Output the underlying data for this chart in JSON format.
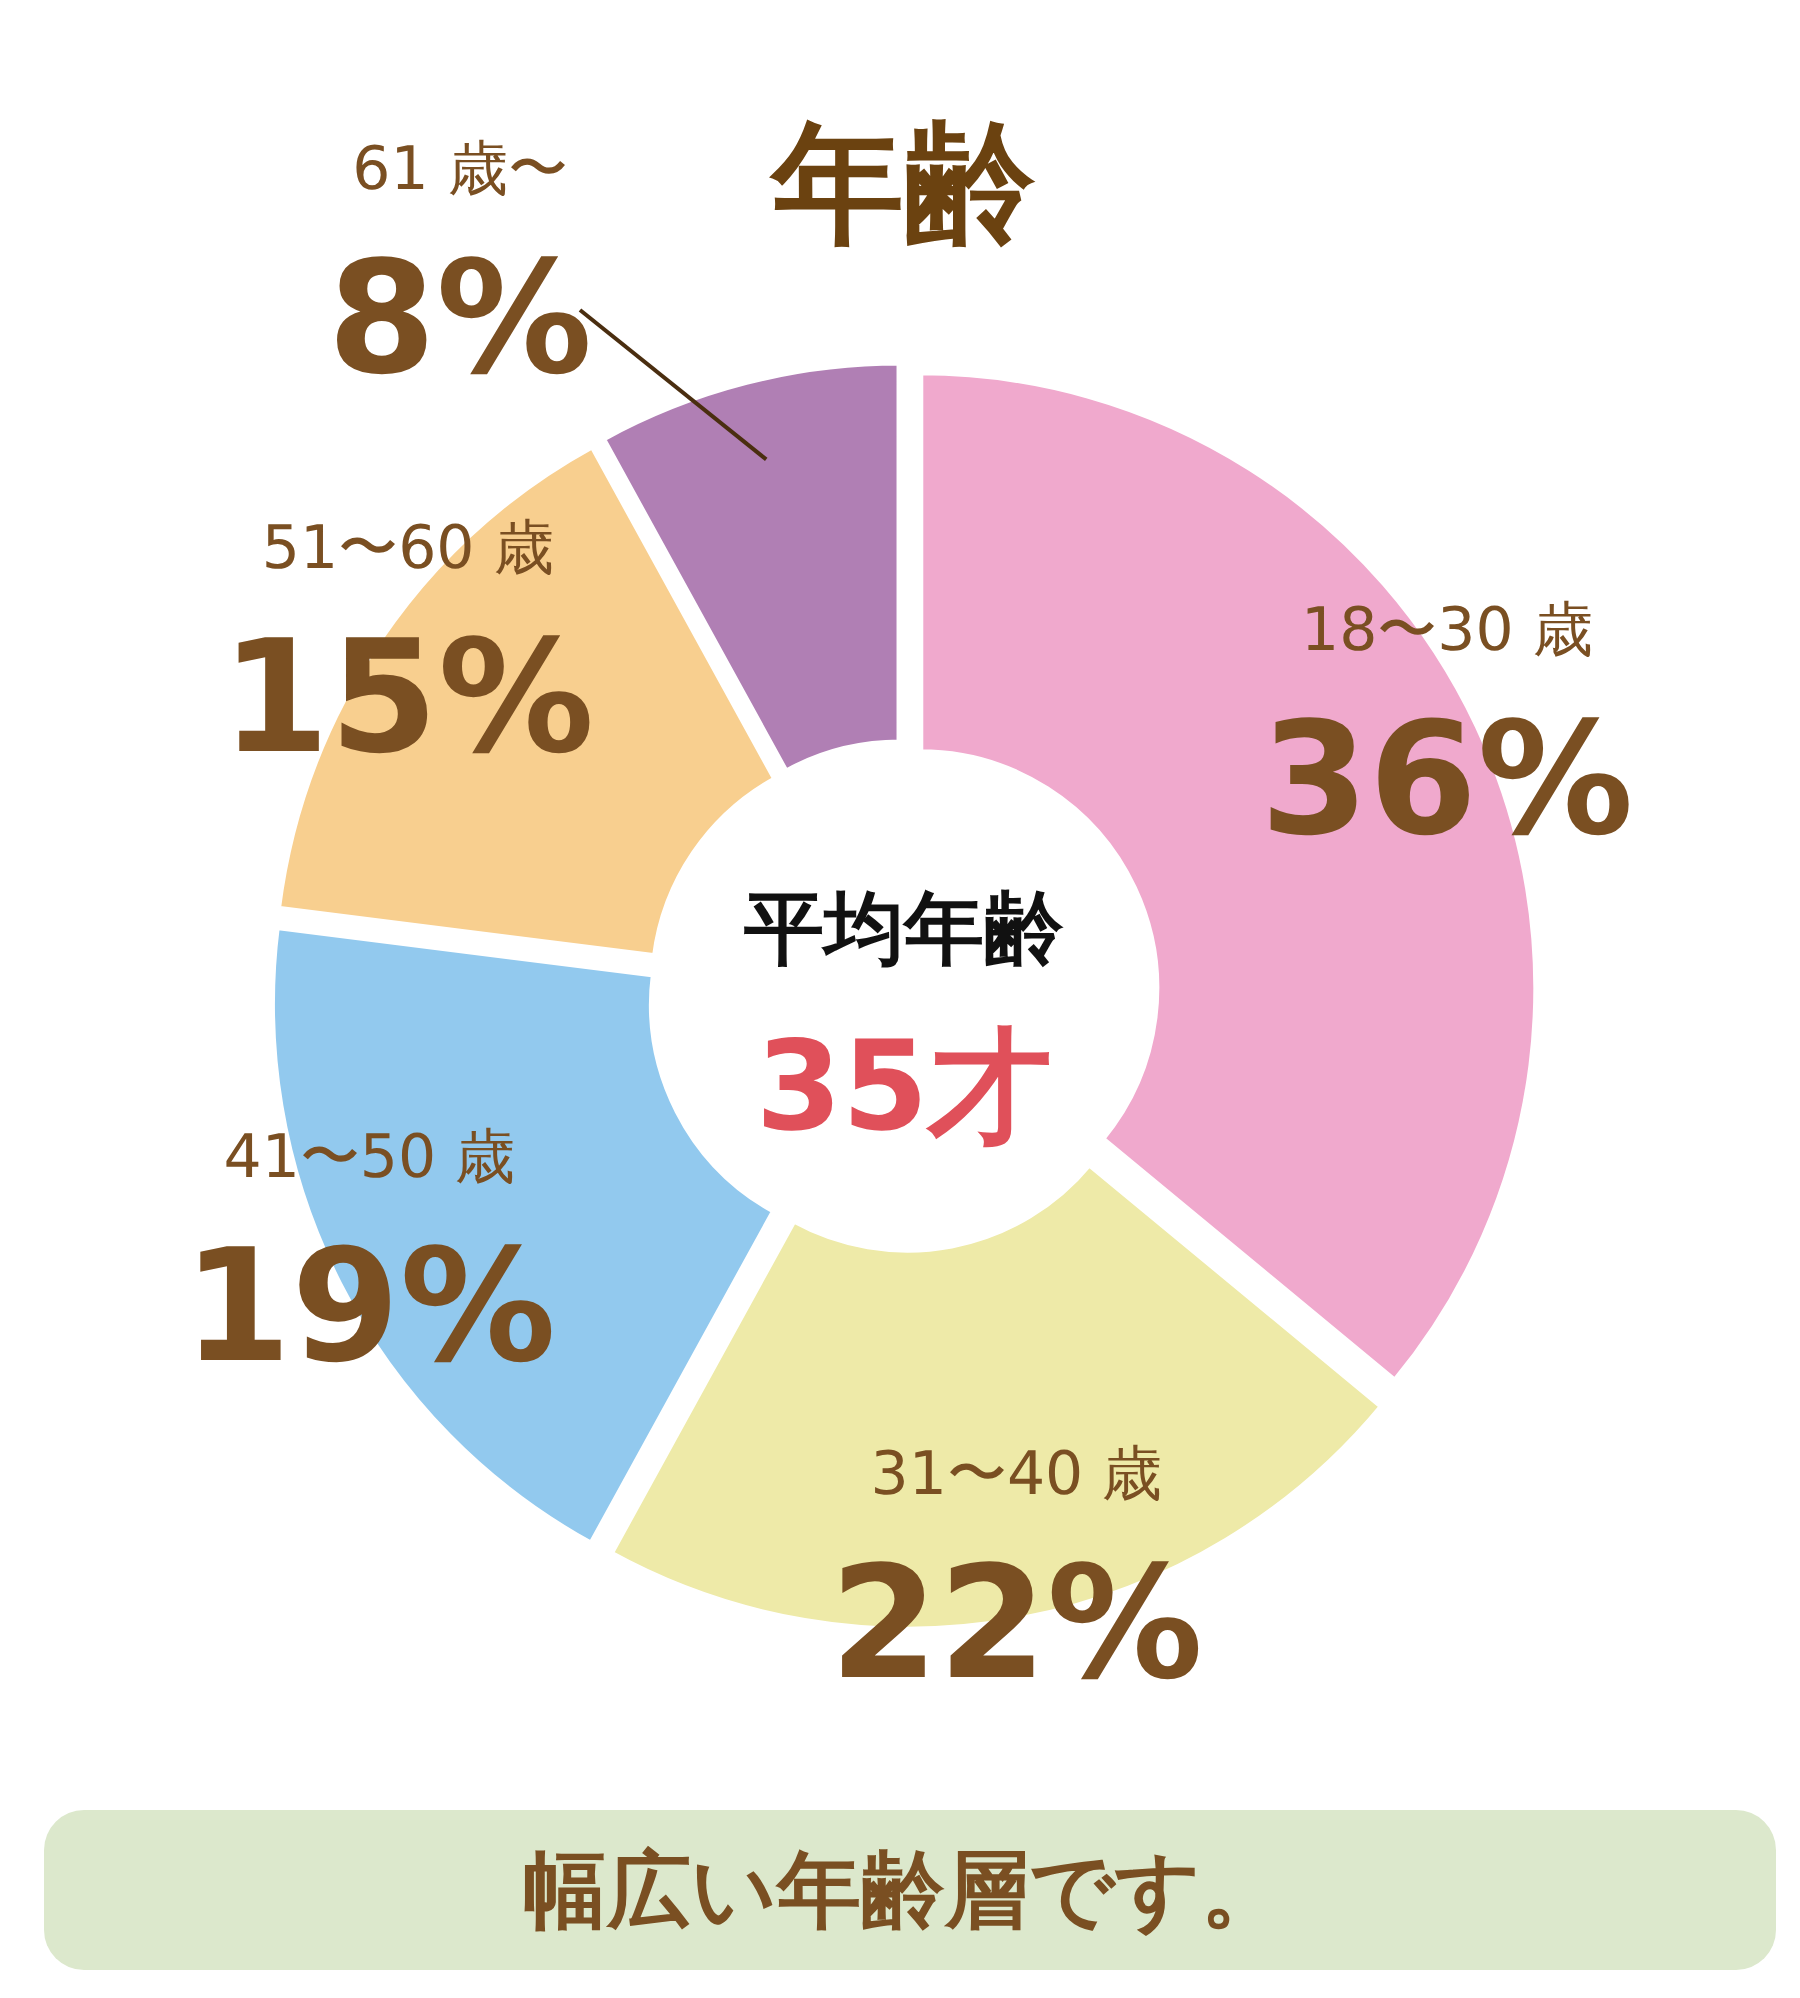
{
  "chart_data": {
    "type": "donut",
    "title": "年齢",
    "categories": [
      "18〜30 歳",
      "31〜40 歳",
      "41〜50 歳",
      "51〜60 歳",
      "61 歳〜"
    ],
    "values": [
      36,
      22,
      19,
      15,
      8
    ],
    "value_labels": [
      "36%",
      "22%",
      "19%",
      "15%",
      "8%"
    ],
    "colors": [
      "#f0a9cd",
      "#eeeaa8",
      "#92c9ee",
      "#f8cf8f",
      "#b07fb4"
    ],
    "annotations": [
      "平均年齢",
      "35才",
      "幅広い年齢層です。"
    ]
  }
}
